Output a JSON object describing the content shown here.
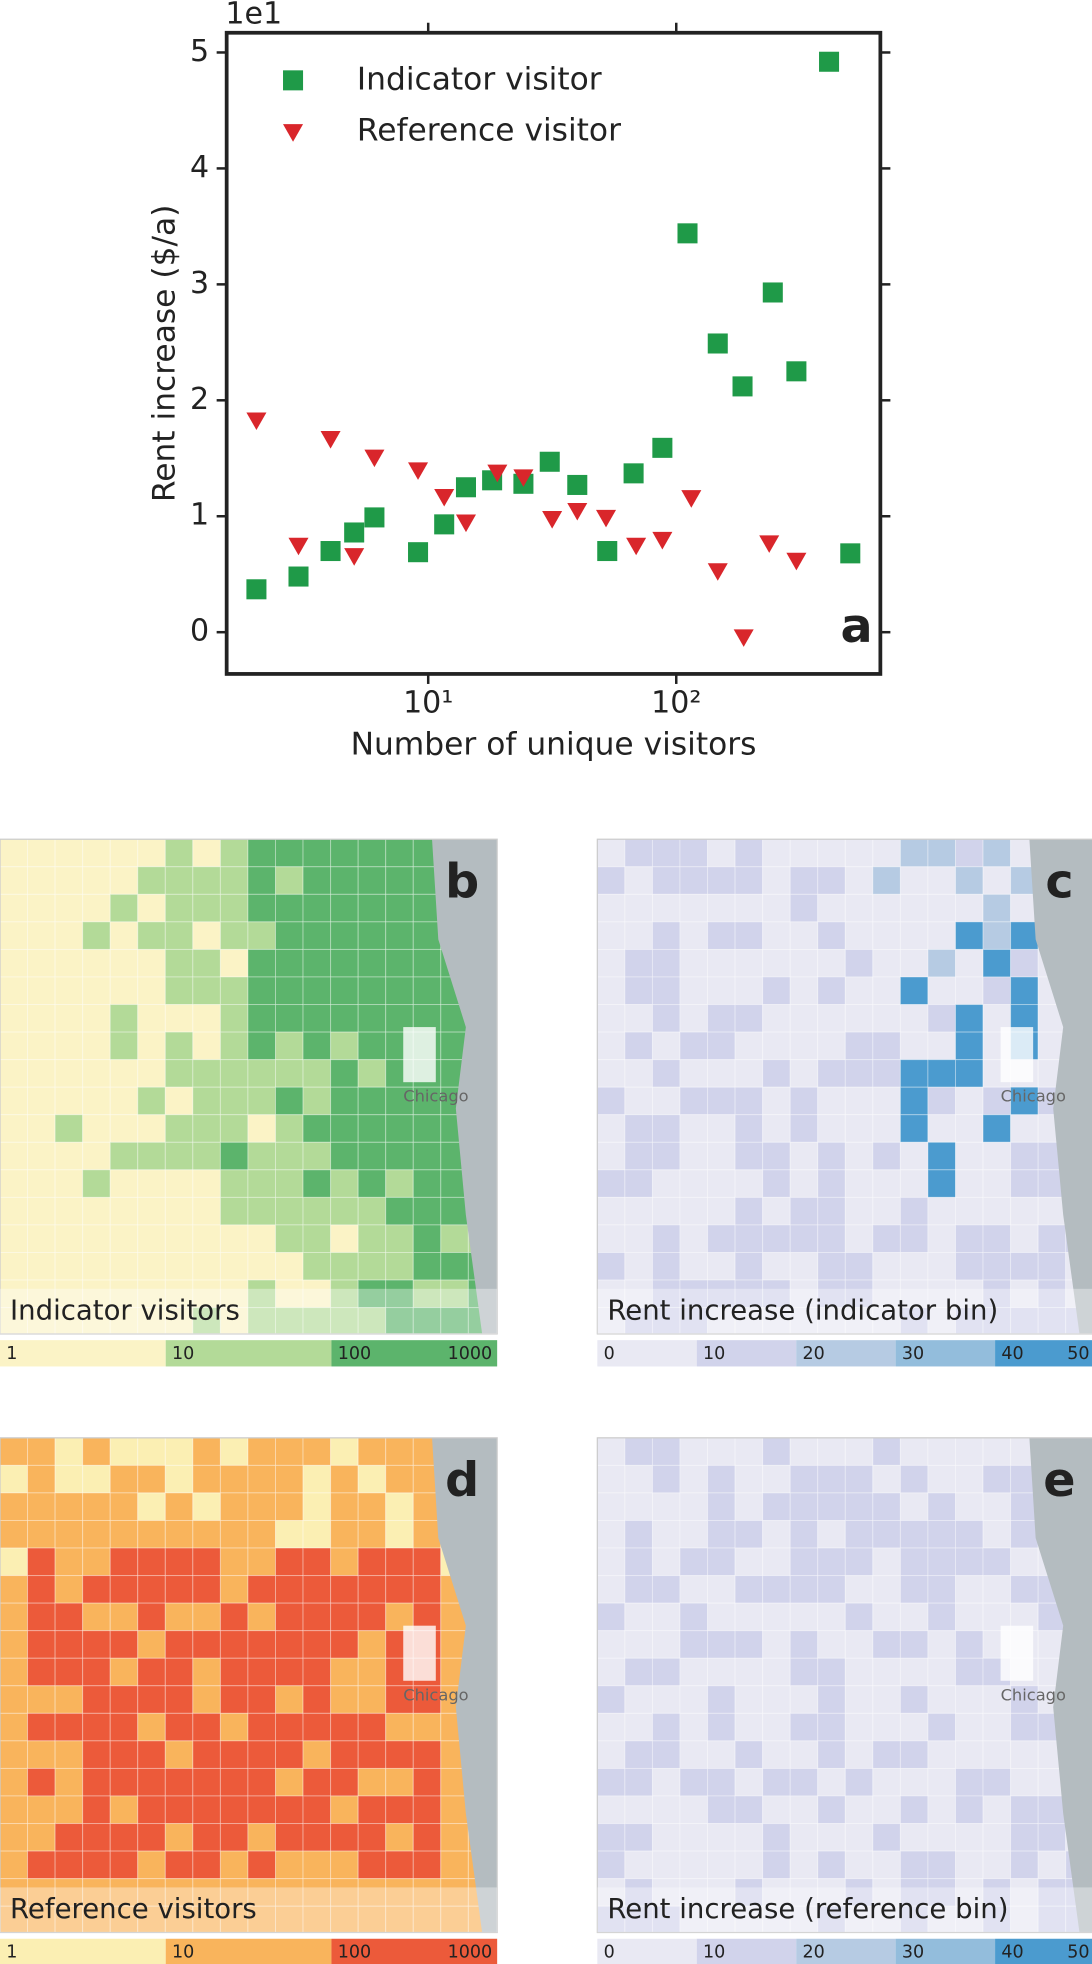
{
  "chart_data": {
    "type": "scatter",
    "xlabel": "Number of unique visitors",
    "ylabel": "Rent increase ($/a)",
    "y_offset_label": "1e1",
    "panel_label": "a",
    "xscale": "log",
    "xlim": [
      1.54,
      665
    ],
    "ylim": [
      -0.36,
      5.17
    ],
    "xticks": [
      {
        "value": 10,
        "label": "10¹"
      },
      {
        "value": 100,
        "label": "10²"
      }
    ],
    "yticks": [
      0,
      1,
      2,
      3,
      4,
      5
    ],
    "legend": "upper left",
    "series": [
      {
        "name": "Indicator visitor",
        "color": "#1f9a48",
        "marker": "square",
        "x": [
          2.03,
          3.0,
          4.04,
          5.03,
          6.07,
          9.1,
          11.6,
          14.2,
          18.1,
          24.2,
          30.9,
          39.9,
          52.7,
          67.3,
          87.9,
          111,
          147,
          185,
          245,
          305,
          413,
          503
        ],
        "values": [
          0.37,
          0.48,
          0.7,
          0.86,
          0.99,
          0.69,
          0.93,
          1.25,
          1.31,
          1.28,
          1.47,
          1.27,
          0.7,
          1.37,
          1.59,
          3.44,
          2.49,
          2.12,
          2.93,
          2.25,
          4.92,
          0.68
        ]
      },
      {
        "name": "Reference visitor",
        "color": "#d9262b",
        "marker": "triangle_down",
        "x": [
          2.03,
          3.0,
          4.04,
          5.03,
          6.07,
          9.1,
          11.6,
          14.2,
          19.0,
          24.2,
          31.6,
          39.9,
          52.1,
          68.9,
          87.9,
          115,
          147,
          187,
          237,
          305
        ],
        "values": [
          1.83,
          0.75,
          1.67,
          0.66,
          1.51,
          1.4,
          1.17,
          0.95,
          1.38,
          1.34,
          0.98,
          1.05,
          0.99,
          0.75,
          0.8,
          1.16,
          0.53,
          -0.04,
          0.77,
          0.62
        ]
      }
    ]
  },
  "maps": [
    {
      "panel_label": "b",
      "title": "Indicator visitors",
      "city_label": "Chicago",
      "colorbar": {
        "ticks": [
          1,
          10,
          100,
          1000
        ],
        "colors": [
          "#fbf3c6",
          "#b3da98",
          "#5cb46c"
        ]
      }
    },
    {
      "panel_label": "c",
      "title": "Rent increase (indicator bin)",
      "city_label": "Chicago",
      "colorbar": {
        "ticks": [
          0,
          10,
          20,
          30,
          40,
          50
        ],
        "colors": [
          "#e9e9f3",
          "#d1d3eb",
          "#b6cbe3",
          "#93bddc",
          "#4b9bcf"
        ]
      }
    },
    {
      "panel_label": "d",
      "title": "Reference visitors",
      "city_label": "Chicago",
      "colorbar": {
        "ticks": [
          1,
          10,
          100,
          1000
        ],
        "colors": [
          "#fbefb3",
          "#f9b45c",
          "#ec5a3a"
        ]
      }
    },
    {
      "panel_label": "e",
      "title": "Rent increase (reference bin)",
      "city_label": "Chicago",
      "colorbar": {
        "ticks": [
          0,
          10,
          20,
          30,
          40,
          50
        ],
        "colors": [
          "#e9e9f3",
          "#d1d3eb",
          "#b6cbe3",
          "#93bddc",
          "#4b9bcf"
        ]
      }
    }
  ]
}
